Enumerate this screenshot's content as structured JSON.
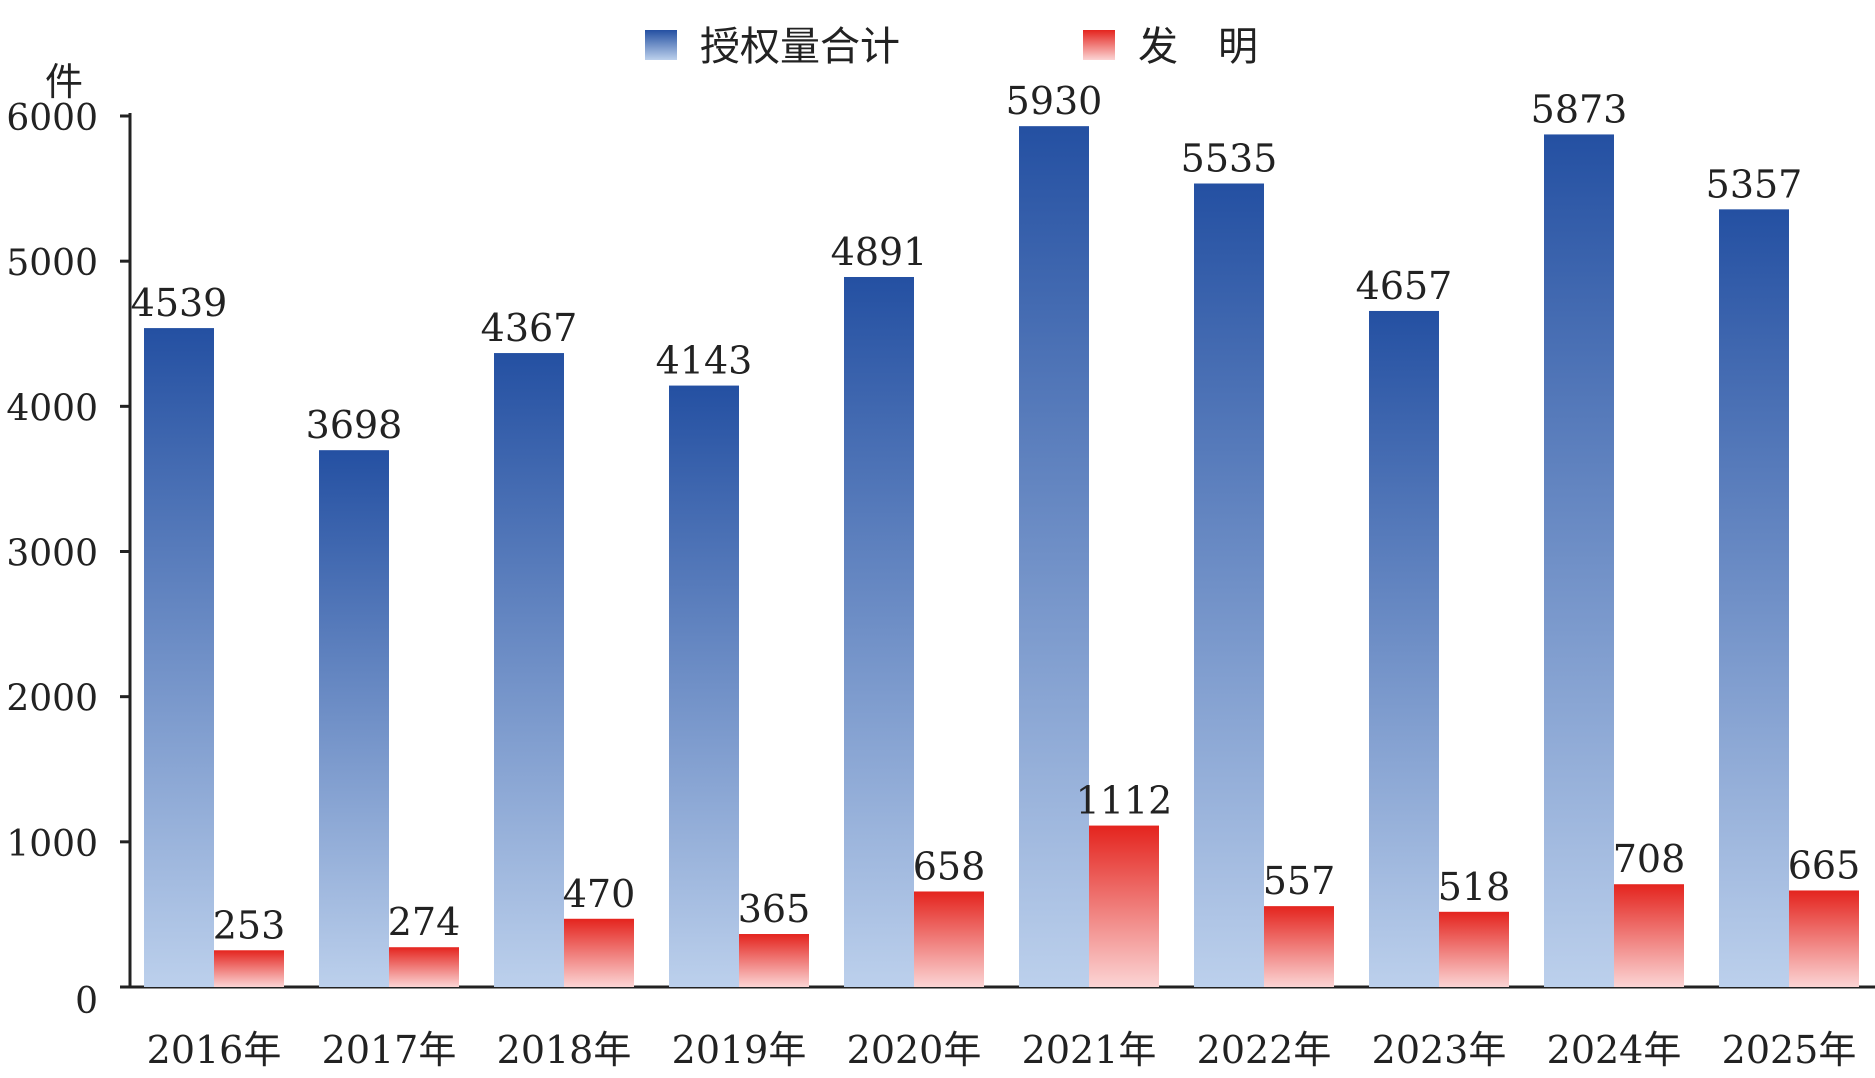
{
  "chart_data": {
    "type": "bar",
    "unit": "件",
    "categories": [
      "2016年",
      "2017年",
      "2018年",
      "2019年",
      "2020年",
      "2021年",
      "2022年",
      "2023年",
      "2024年",
      "2025年"
    ],
    "series": [
      {
        "name": "授权量合计",
        "values": [
          4539,
          3698,
          4367,
          4143,
          4891,
          5930,
          5535,
          4657,
          5873,
          5357
        ],
        "color_top": "#2450a2",
        "color_bottom": "#bcd0ec"
      },
      {
        "name": "发　明",
        "values": [
          253,
          274,
          470,
          365,
          658,
          1112,
          557,
          518,
          708,
          665
        ],
        "color_top": "#e4241e",
        "color_bottom": "#fbd4d4"
      }
    ],
    "y_ticks": [
      0,
      1000,
      2000,
      3000,
      4000,
      5000,
      6000
    ],
    "ylim": [
      0,
      6000
    ],
    "legend_position": "top-center",
    "grid": false
  }
}
